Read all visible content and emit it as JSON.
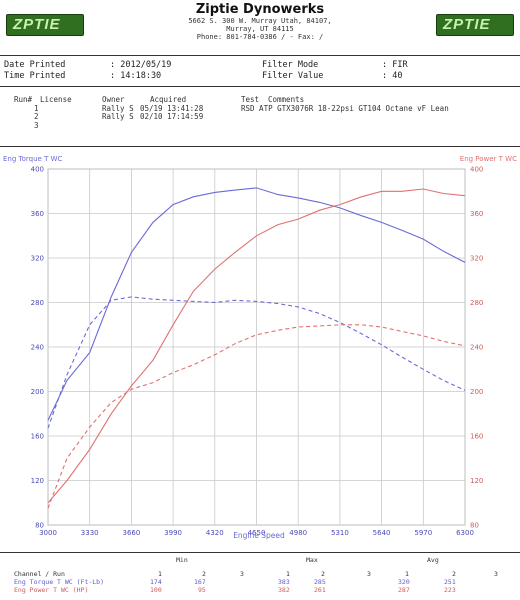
{
  "header": {
    "logo_left": "ZPTIE",
    "logo_right": "ZPTIE",
    "company": "Ziptie Dynowerks",
    "address1": "5662 S. 300 W. Murray Utah, 84107,",
    "address2": "Murray, UT  84115",
    "phone": "Phone: 801-784-0386 /  - Fax:  /"
  },
  "meta": {
    "date_label": "Date Printed",
    "date_value": ": 2012/05/19",
    "time_label": "Time Printed",
    "time_value": ": 14:18:30",
    "filter_mode_label": "Filter Mode",
    "filter_mode_value": ": FIR",
    "filter_value_label": "Filter Value",
    "filter_value_value": ": 40"
  },
  "runs": {
    "headers": {
      "run": "Run#",
      "license": "License",
      "owner": "Owner",
      "acquired": "Acquired",
      "test": "Test",
      "comments": "Comments"
    },
    "rows": [
      {
        "run": "1",
        "owner": "Rally S",
        "acquired": "05/19 13:41:28",
        "comments": "RSD ATP GTX3076R 18-22psi GT104 Octane vF Lean"
      },
      {
        "run": "2",
        "owner": "Rally S",
        "acquired": "02/10 17:14:59",
        "comments": ""
      },
      {
        "run": "3",
        "owner": "",
        "acquired": "",
        "comments": ""
      }
    ]
  },
  "colors": {
    "torque": "#6a6ad8",
    "power": "#e07070",
    "grid": "#c8c8c8"
  },
  "chart_data": {
    "type": "line",
    "xlabel": "Engine Speed",
    "ylabel_left": "Eng Torque T WC",
    "ylabel_right": "Eng Power T WC",
    "xlim": [
      3000,
      6300
    ],
    "ylim": [
      80,
      400
    ],
    "x_ticks": [
      3000,
      3330,
      3660,
      3990,
      4320,
      4650,
      4980,
      5310,
      5640,
      5970,
      6300
    ],
    "y_ticks": [
      80,
      120,
      160,
      200,
      240,
      280,
      320,
      360,
      400
    ],
    "grid": true,
    "series": [
      {
        "name": "Eng Torque T WC (Ft-Lb)",
        "run": 1,
        "axis": "left",
        "color": "#6a6ad8",
        "dashed": false,
        "x": [
          3000,
          3150,
          3330,
          3500,
          3660,
          3830,
          3990,
          4150,
          4320,
          4480,
          4650,
          4820,
          4980,
          5150,
          5310,
          5480,
          5640,
          5800,
          5970,
          6130,
          6300
        ],
        "y": [
          174,
          210,
          235,
          285,
          325,
          352,
          368,
          375,
          379,
          381,
          383,
          377,
          374,
          370,
          365,
          358,
          352,
          345,
          337,
          326,
          316
        ]
      },
      {
        "name": "Eng Torque T WC (Ft-Lb)",
        "run": 2,
        "axis": "left",
        "color": "#6a6ad8",
        "dashed": true,
        "x": [
          3000,
          3150,
          3330,
          3500,
          3660,
          3830,
          3990,
          4150,
          4320,
          4480,
          4650,
          4820,
          4980,
          5150,
          5310,
          5480,
          5640,
          5800,
          5970,
          6130,
          6300
        ],
        "y": [
          167,
          215,
          260,
          282,
          285,
          283,
          282,
          281,
          280,
          282,
          281,
          279,
          276,
          270,
          262,
          252,
          242,
          231,
          220,
          210,
          201
        ]
      },
      {
        "name": "Eng Power T WC (HP)",
        "run": 1,
        "axis": "right",
        "color": "#e07070",
        "dashed": false,
        "x": [
          3000,
          3150,
          3330,
          3500,
          3660,
          3830,
          3990,
          4150,
          4320,
          4480,
          4650,
          4820,
          4980,
          5150,
          5310,
          5480,
          5640,
          5800,
          5970,
          6130,
          6300
        ],
        "y": [
          100,
          120,
          148,
          180,
          205,
          228,
          260,
          290,
          310,
          325,
          340,
          350,
          355,
          363,
          368,
          375,
          380,
          380,
          382,
          378,
          376
        ]
      },
      {
        "name": "Eng Power T WC (HP)",
        "run": 2,
        "axis": "right",
        "color": "#e07070",
        "dashed": true,
        "x": [
          3000,
          3150,
          3330,
          3500,
          3660,
          3830,
          3990,
          4150,
          4320,
          4480,
          4650,
          4820,
          4980,
          5150,
          5310,
          5480,
          5640,
          5800,
          5970,
          6130,
          6300
        ],
        "y": [
          95,
          140,
          168,
          190,
          202,
          208,
          217,
          224,
          233,
          243,
          251,
          255,
          258,
          259,
          260,
          260,
          258,
          254,
          250,
          245,
          241
        ]
      }
    ]
  },
  "summary": {
    "min_label": "Min",
    "max_label": "Max",
    "avg_label": "Avg",
    "channel_label": "Channel / Run",
    "run_numbers": [
      "1",
      "2",
      "3"
    ],
    "rows": [
      {
        "name": "Eng Torque T WC (Ft-Lb)",
        "min": [
          "174",
          "167",
          ""
        ],
        "max": [
          "383",
          "285",
          ""
        ],
        "avg": [
          "320",
          "251",
          ""
        ]
      },
      {
        "name": "Eng Power T WC (HP)",
        "min": [
          "100",
          "95",
          ""
        ],
        "max": [
          "382",
          "261",
          ""
        ],
        "avg": [
          "287",
          "223",
          ""
        ]
      }
    ]
  }
}
